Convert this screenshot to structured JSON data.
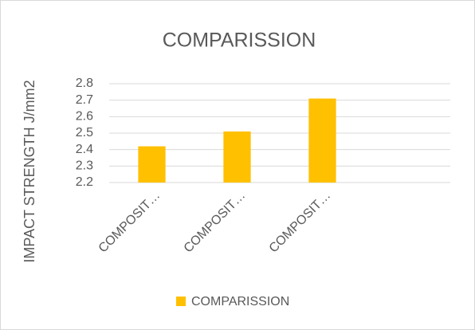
{
  "chart_data": {
    "type": "bar",
    "title": "COMPARISSION",
    "y_label": "IMPACT STRENGTH J/mm2",
    "categories": [
      "COMPOSIT…",
      "COMPOSIT…",
      "COMPOSIT…",
      null
    ],
    "series": [
      {
        "name": "COMPARISSION",
        "color": "#ffc000",
        "values": [
          2.42,
          2.51,
          2.71,
          null
        ]
      }
    ],
    "ylim": [
      2.2,
      2.8
    ],
    "yticks": [
      2.2,
      2.3,
      2.4,
      2.5,
      2.6,
      2.7,
      2.8
    ],
    "grid": true,
    "legend": "bottom"
  }
}
